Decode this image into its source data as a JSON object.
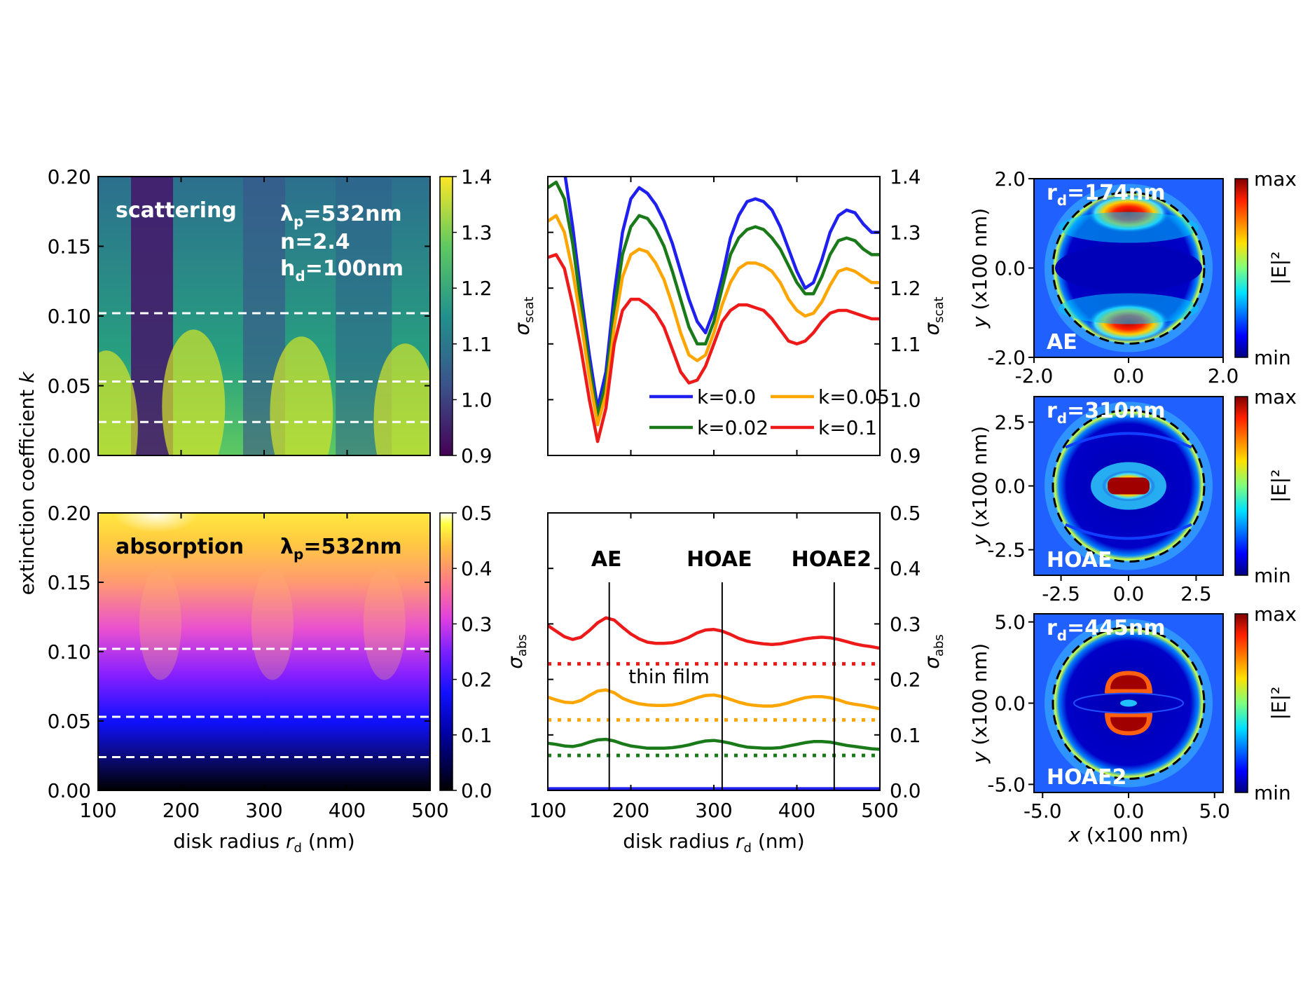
{
  "colors": {
    "k0": "#1f1ff0",
    "k002": "#1a7a1a",
    "k005": "#ffa500",
    "k01": "#ee1a1a"
  },
  "chart_data": [
    {
      "type": "heatmap",
      "id": "scat-map",
      "xlabel": "disk radius r_d (nm)",
      "ylabel": "extinction coefficient k",
      "xlim": [
        100,
        500
      ],
      "ylim": [
        0,
        0.2
      ],
      "xticks": [
        "100",
        "200",
        "300",
        "400",
        "500"
      ],
      "yticks": [
        "0.00",
        "0.05",
        "0.10",
        "0.15",
        "0.20"
      ],
      "colorbar": {
        "label": "σ_scat",
        "range": [
          0.9,
          1.4
        ],
        "ticks": [
          "0.9",
          "1.0",
          "1.1",
          "1.2",
          "1.3",
          "1.4"
        ],
        "colormap": "viridis"
      },
      "dashed_k": [
        0.024,
        0.053,
        0.102
      ],
      "annotations": [
        "scattering",
        "λp=532nm",
        "n=2.4",
        "hd=100nm"
      ]
    },
    {
      "type": "heatmap",
      "id": "abs-map",
      "xlabel": "disk radius r_d (nm)",
      "ylabel": "extinction coefficient k",
      "xlim": [
        100,
        500
      ],
      "ylim": [
        0,
        0.2
      ],
      "xticks": [
        "100",
        "200",
        "300",
        "400",
        "500"
      ],
      "yticks": [
        "0.00",
        "0.05",
        "0.10",
        "0.15",
        "0.20"
      ],
      "colorbar": {
        "label": "σ_abs",
        "range": [
          0,
          0.5
        ],
        "ticks": [
          "0.0",
          "0.1",
          "0.2",
          "0.3",
          "0.4",
          "0.5"
        ],
        "colormap": "gnuplot2"
      },
      "dashed_k": [
        0.024,
        0.053,
        0.102
      ],
      "annotations": [
        "absorption",
        "λp=532nm"
      ]
    },
    {
      "type": "line",
      "id": "scat-lines",
      "ylabel": "σ_scat",
      "xlim": [
        100,
        500
      ],
      "ylim": [
        0.9,
        1.4
      ],
      "yticks": [
        "0.9",
        "1.0",
        "1.1",
        "1.2",
        "1.3",
        "1.4"
      ],
      "x": [
        100,
        110,
        120,
        130,
        140,
        150,
        160,
        170,
        180,
        190,
        200,
        210,
        220,
        230,
        240,
        250,
        260,
        270,
        280,
        290,
        300,
        310,
        320,
        330,
        340,
        350,
        360,
        370,
        380,
        390,
        400,
        410,
        420,
        430,
        440,
        450,
        460,
        470,
        480,
        490,
        500
      ],
      "series": [
        {
          "name": "k=0.0",
          "color": "#1f1ff0",
          "values": [
            1.44,
            1.46,
            1.41,
            1.31,
            1.19,
            1.08,
            0.985,
            1.05,
            1.19,
            1.3,
            1.36,
            1.38,
            1.37,
            1.35,
            1.32,
            1.28,
            1.23,
            1.18,
            1.14,
            1.12,
            1.16,
            1.22,
            1.29,
            1.33,
            1.355,
            1.36,
            1.355,
            1.34,
            1.31,
            1.27,
            1.23,
            1.2,
            1.21,
            1.25,
            1.3,
            1.33,
            1.34,
            1.335,
            1.315,
            1.3,
            1.3
          ]
        },
        {
          "name": "k=0.02",
          "color": "#1a7a1a",
          "values": [
            1.38,
            1.39,
            1.36,
            1.28,
            1.17,
            1.06,
            0.97,
            1.03,
            1.16,
            1.26,
            1.31,
            1.33,
            1.325,
            1.305,
            1.275,
            1.23,
            1.18,
            1.13,
            1.1,
            1.1,
            1.14,
            1.2,
            1.26,
            1.29,
            1.305,
            1.31,
            1.305,
            1.29,
            1.27,
            1.24,
            1.21,
            1.19,
            1.19,
            1.22,
            1.26,
            1.285,
            1.29,
            1.285,
            1.27,
            1.26,
            1.26
          ]
        },
        {
          "name": "k=0.05",
          "color": "#ffa500",
          "values": [
            1.32,
            1.33,
            1.3,
            1.23,
            1.14,
            1.04,
            0.955,
            1.01,
            1.13,
            1.22,
            1.26,
            1.27,
            1.265,
            1.245,
            1.215,
            1.17,
            1.12,
            1.08,
            1.07,
            1.08,
            1.12,
            1.17,
            1.21,
            1.235,
            1.245,
            1.245,
            1.24,
            1.23,
            1.21,
            1.18,
            1.16,
            1.15,
            1.155,
            1.175,
            1.205,
            1.23,
            1.235,
            1.23,
            1.22,
            1.21,
            1.21
          ]
        },
        {
          "name": "k=0.1",
          "color": "#ee1a1a",
          "values": [
            1.255,
            1.26,
            1.235,
            1.17,
            1.09,
            1.0,
            0.925,
            0.985,
            1.1,
            1.16,
            1.18,
            1.18,
            1.17,
            1.155,
            1.13,
            1.09,
            1.05,
            1.03,
            1.035,
            1.06,
            1.1,
            1.14,
            1.16,
            1.17,
            1.17,
            1.165,
            1.16,
            1.145,
            1.125,
            1.105,
            1.1,
            1.105,
            1.12,
            1.14,
            1.155,
            1.16,
            1.16,
            1.155,
            1.15,
            1.145,
            1.145
          ]
        }
      ]
    },
    {
      "type": "line",
      "id": "abs-lines",
      "xlabel": "disk radius r_d (nm)",
      "ylabel": "σ_abs",
      "xlim": [
        100,
        500
      ],
      "ylim": [
        0,
        0.5
      ],
      "xticks": [
        "100",
        "200",
        "300",
        "400",
        "500"
      ],
      "yticks": [
        "0.0",
        "0.1",
        "0.2",
        "0.3",
        "0.4",
        "0.5"
      ],
      "x": [
        100,
        110,
        120,
        130,
        140,
        150,
        160,
        170,
        180,
        190,
        200,
        210,
        220,
        230,
        240,
        250,
        260,
        270,
        280,
        290,
        300,
        310,
        320,
        330,
        340,
        350,
        360,
        370,
        380,
        390,
        400,
        410,
        420,
        430,
        440,
        450,
        460,
        470,
        480,
        490,
        500
      ],
      "series": [
        {
          "name": "k=0.1",
          "color": "#ee1a1a",
          "values": [
            0.297,
            0.287,
            0.277,
            0.272,
            0.276,
            0.288,
            0.302,
            0.311,
            0.307,
            0.294,
            0.282,
            0.273,
            0.267,
            0.265,
            0.265,
            0.266,
            0.27,
            0.276,
            0.284,
            0.289,
            0.29,
            0.287,
            0.281,
            0.274,
            0.269,
            0.266,
            0.264,
            0.263,
            0.264,
            0.267,
            0.27,
            0.273,
            0.275,
            0.276,
            0.275,
            0.272,
            0.268,
            0.264,
            0.261,
            0.259,
            0.256
          ]
        },
        {
          "name": "k=0.05",
          "color": "#ffa500",
          "values": [
            0.168,
            0.163,
            0.159,
            0.158,
            0.162,
            0.171,
            0.179,
            0.181,
            0.176,
            0.166,
            0.16,
            0.156,
            0.154,
            0.153,
            0.153,
            0.154,
            0.157,
            0.162,
            0.167,
            0.171,
            0.172,
            0.169,
            0.164,
            0.159,
            0.155,
            0.153,
            0.152,
            0.152,
            0.154,
            0.158,
            0.163,
            0.167,
            0.169,
            0.169,
            0.167,
            0.163,
            0.158,
            0.155,
            0.153,
            0.15,
            0.147
          ]
        },
        {
          "name": "k=0.02",
          "color": "#1a7a1a",
          "values": [
            0.085,
            0.083,
            0.08,
            0.079,
            0.082,
            0.087,
            0.091,
            0.092,
            0.089,
            0.084,
            0.08,
            0.078,
            0.076,
            0.076,
            0.076,
            0.077,
            0.079,
            0.082,
            0.086,
            0.089,
            0.09,
            0.088,
            0.085,
            0.081,
            0.078,
            0.077,
            0.076,
            0.076,
            0.077,
            0.08,
            0.083,
            0.086,
            0.088,
            0.088,
            0.087,
            0.084,
            0.081,
            0.079,
            0.077,
            0.075,
            0.074
          ]
        },
        {
          "name": "k=0.0",
          "color": "#1f1ff0",
          "values": [
            0.003,
            0.003,
            0.003,
            0.003,
            0.003,
            0.003,
            0.003,
            0.003,
            0.003,
            0.003,
            0.003,
            0.003,
            0.003,
            0.003,
            0.003,
            0.003,
            0.003,
            0.003,
            0.003,
            0.003,
            0.003,
            0.003,
            0.003,
            0.003,
            0.003,
            0.003,
            0.003,
            0.003,
            0.003,
            0.003,
            0.003,
            0.003,
            0.003,
            0.003,
            0.003,
            0.003,
            0.003,
            0.003,
            0.003,
            0.003,
            0.003
          ]
        }
      ],
      "thin_film": {
        "label": "thin film",
        "values": [
          0.228,
          0.127,
          0.063
        ]
      },
      "mode_lines": [
        {
          "label": "AE",
          "x": 174
        },
        {
          "label": "HOAE",
          "x": 310
        },
        {
          "label": "HOAE2",
          "x": 445
        }
      ]
    },
    {
      "type": "heatmap",
      "id": "field-AE",
      "title": "rd=174nm",
      "mode": "AE",
      "ylabel": "y (x100 nm)",
      "xlim": [
        -2.0,
        2.0
      ],
      "ylim": [
        -2.0,
        2.0
      ],
      "xticks": [
        "-2.0",
        "0.0",
        "2.0"
      ],
      "yticks": [
        "-2.0",
        "0.0",
        "2.0"
      ],
      "colorbar": {
        "label": "|E|²",
        "ticks": [
          "min",
          "max"
        ],
        "colormap": "jet"
      }
    },
    {
      "type": "heatmap",
      "id": "field-HOAE",
      "title": "rd=310nm",
      "mode": "HOAE",
      "ylabel": "y (x100 nm)",
      "xlim": [
        -3.5,
        3.5
      ],
      "ylim": [
        -3.5,
        3.5
      ],
      "xticks": [
        "-2.5",
        "0.0",
        "2.5"
      ],
      "yticks": [
        "-2.5",
        "0.0",
        "2.5"
      ],
      "colorbar": {
        "label": "|E|²",
        "ticks": [
          "min",
          "max"
        ],
        "colormap": "jet"
      }
    },
    {
      "type": "heatmap",
      "id": "field-HOAE2",
      "title": "rd=445nm",
      "mode": "HOAE2",
      "xlabel": "x (x100 nm)",
      "ylabel": "y (x100 nm)",
      "xlim": [
        -5.5,
        5.5
      ],
      "ylim": [
        -5.5,
        5.5
      ],
      "xticks": [
        "-5.0",
        "0.0",
        "5.0"
      ],
      "yticks": [
        "-5.0",
        "0.0",
        "5.0"
      ],
      "colorbar": {
        "label": "|E|²",
        "ticks": [
          "min",
          "max"
        ],
        "colormap": "jet"
      }
    }
  ]
}
